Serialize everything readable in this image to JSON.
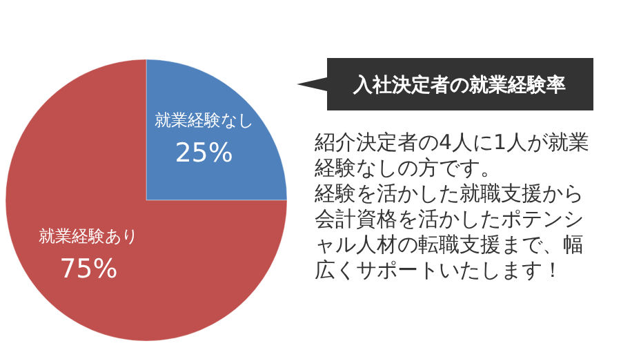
{
  "chart_data": {
    "type": "pie",
    "title": "入社決定者の就業経験率",
    "categories": [
      "就業経験なし",
      "就業経験あり"
    ],
    "values": [
      25,
      75
    ],
    "value_labels": [
      "25%",
      "75%"
    ],
    "colors": [
      "#4f81bd",
      "#c0504d"
    ],
    "annotations": [
      "紹介決定者の4人に1人が就業経験なしの方です。",
      "経験を活かした就職支援から会計資格を活かしたポテンシャル人材の転職支援まで、幅広くサポートいたします！"
    ]
  }
}
